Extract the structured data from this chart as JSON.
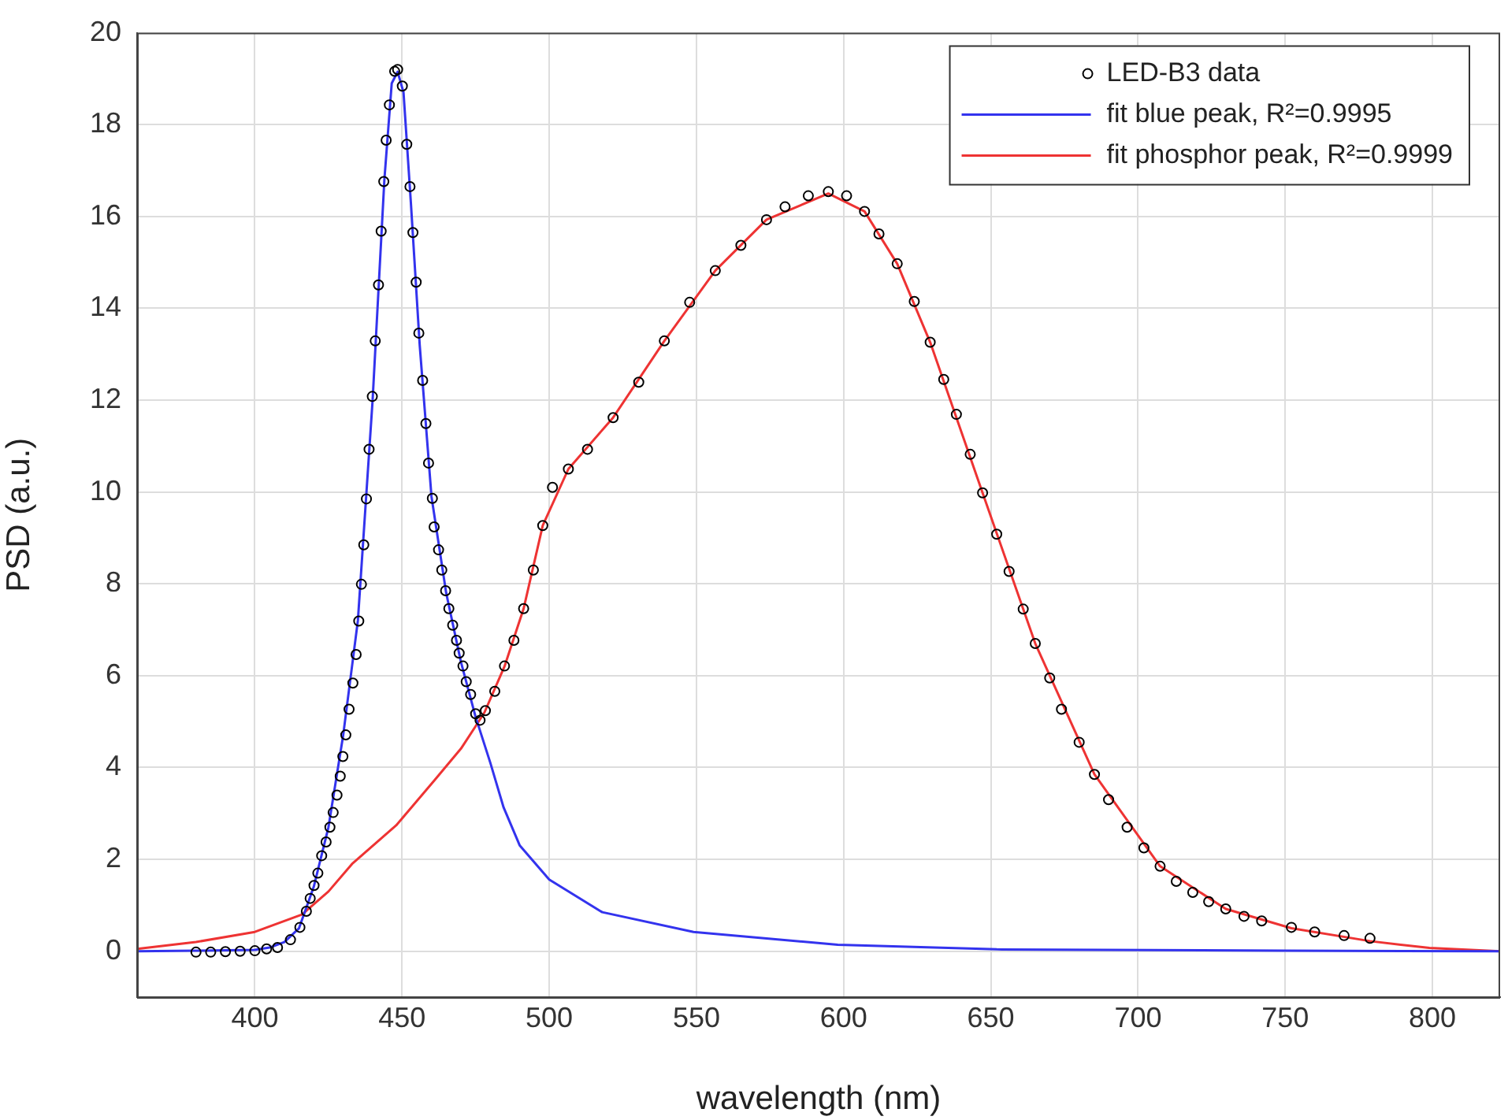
{
  "chart_data": {
    "type": "scatter",
    "xlabel": "wavelength (nm)",
    "ylabel": "PSD (a.u.)",
    "xlim": [
      360,
      823
    ],
    "ylim": [
      -1,
      20
    ],
    "xticks": [
      400,
      450,
      500,
      550,
      600,
      650,
      700,
      750,
      800
    ],
    "yticks": [
      0,
      2,
      4,
      6,
      8,
      10,
      12,
      14,
      16,
      18,
      20
    ],
    "grid": true,
    "legend": "top right",
    "series": [
      {
        "name": "LED-B3 data",
        "marker": "circle",
        "color": "#000000",
        "x": [
          380,
          385,
          390,
          395,
          400,
          404,
          407.7,
          412.1,
          415.3,
          417.5,
          418.8,
          420.1,
          421.4,
          422.7,
          424.2,
          425.5,
          426.6,
          427.9,
          429,
          429.9,
          430.9,
          432,
          433.3,
          434.4,
          435.3,
          436.2,
          437,
          437.9,
          438.8,
          439.9,
          440.9,
          442,
          442.9,
          443.8,
          444.6,
          445.7,
          447.5,
          448.5,
          450.1,
          451.6,
          452.7,
          453.7,
          454.8,
          455.7,
          457,
          458.1,
          459,
          460.3,
          460.9,
          462.4,
          463.5,
          464.8,
          465.9,
          467.2,
          468.5,
          469.4,
          470.7,
          471.8,
          473.3,
          475,
          476.5,
          478.3,
          481.5,
          484.8,
          488,
          491.3,
          494.6,
          497.8,
          501.1,
          506.5,
          513,
          521.7,
          530.4,
          539.1,
          547.7,
          556.4,
          565.1,
          573.8,
          580.1,
          588,
          594.8,
          601,
          607.1,
          612,
          618.2,
          624,
          629.4,
          634,
          638.3,
          643,
          647.2,
          652,
          656.2,
          661,
          665.1,
          670,
          674,
          680,
          685.2,
          690,
          696.3,
          702,
          707.5,
          713,
          718.6,
          724,
          729.8,
          736,
          742,
          752.1,
          760,
          770,
          778.8
        ],
        "values": [
          -0.02,
          -0.02,
          -0.01,
          0,
          0.01,
          0.05,
          0.08,
          0.25,
          0.52,
          0.87,
          1.15,
          1.43,
          1.7,
          2.08,
          2.38,
          2.7,
          3.02,
          3.4,
          3.81,
          4.24,
          4.71,
          5.27,
          5.84,
          6.46,
          7.19,
          7.99,
          8.85,
          9.85,
          10.93,
          12.08,
          13.29,
          14.51,
          15.68,
          16.76,
          17.66,
          18.43,
          19.16,
          19.2,
          18.84,
          17.57,
          16.65,
          15.65,
          14.57,
          13.46,
          12.43,
          11.49,
          10.63,
          9.86,
          9.24,
          8.74,
          8.3,
          7.85,
          7.46,
          7.1,
          6.77,
          6.49,
          6.21,
          5.87,
          5.59,
          5.17,
          5.03,
          5.24,
          5.66,
          6.21,
          6.77,
          7.46,
          8.3,
          9.27,
          10.1,
          10.5,
          10.93,
          11.62,
          12.39,
          13.29,
          14.13,
          14.82,
          15.37,
          15.93,
          16.21,
          16.45,
          16.54,
          16.45,
          16.11,
          15.62,
          14.97,
          14.15,
          13.26,
          12.45,
          11.69,
          10.82,
          9.98,
          9.08,
          8.27,
          7.45,
          6.7,
          5.95,
          5.27,
          4.55,
          3.85,
          3.3,
          2.7,
          2.25,
          1.85,
          1.52,
          1.28,
          1.08,
          0.92,
          0.76,
          0.66,
          0.52,
          0.42,
          0.34,
          0.28
        ]
      },
      {
        "name": "fit blue peak, R²=0.9995",
        "type": "line",
        "marker": "none",
        "color": "#3333ee",
        "x": [
          360,
          380,
          400,
          405,
          410,
          415,
          420,
          425,
          430,
          435,
          440,
          444,
          446.5,
          448.5,
          450.5,
          453,
          456,
          460,
          465,
          470,
          475,
          480,
          484.5,
          490,
          500,
          518,
          549,
          598,
          652,
          750,
          823
        ],
        "values": [
          0,
          0.01,
          0.03,
          0.08,
          0.2,
          0.5,
          1.4,
          2.7,
          4.7,
          7.2,
          12,
          16.8,
          18.9,
          19.15,
          18.7,
          16.3,
          13.2,
          9.9,
          7.8,
          6.3,
          5.1,
          4.1,
          3.13,
          2.3,
          1.56,
          0.85,
          0.42,
          0.14,
          0.04,
          0.01,
          0
        ]
      },
      {
        "name": "fit phosphor peak, R²=0.9999",
        "type": "line",
        "marker": "none",
        "color": "#ee3333",
        "x": [
          360,
          380,
          400,
          416,
          425,
          433,
          448,
          461,
          470,
          475,
          478,
          484.8,
          491.3,
          497.8,
          506.5,
          521.7,
          539.1,
          556.4,
          573.8,
          594.8,
          607.1,
          618.2,
          629.4,
          647.2,
          665.1,
          685.2,
          707.5,
          729.8,
          752.1,
          778.8,
          799,
          823
        ],
        "values": [
          0.05,
          0.2,
          0.42,
          0.8,
          1.3,
          1.9,
          2.74,
          3.72,
          4.41,
          4.9,
          5.2,
          6.2,
          7.46,
          9.27,
          10.5,
          11.62,
          13.29,
          14.82,
          15.93,
          16.5,
          16.11,
          14.97,
          13.26,
          9.98,
          6.7,
          3.85,
          1.85,
          0.92,
          0.5,
          0.22,
          0.07,
          0
        ]
      }
    ]
  }
}
